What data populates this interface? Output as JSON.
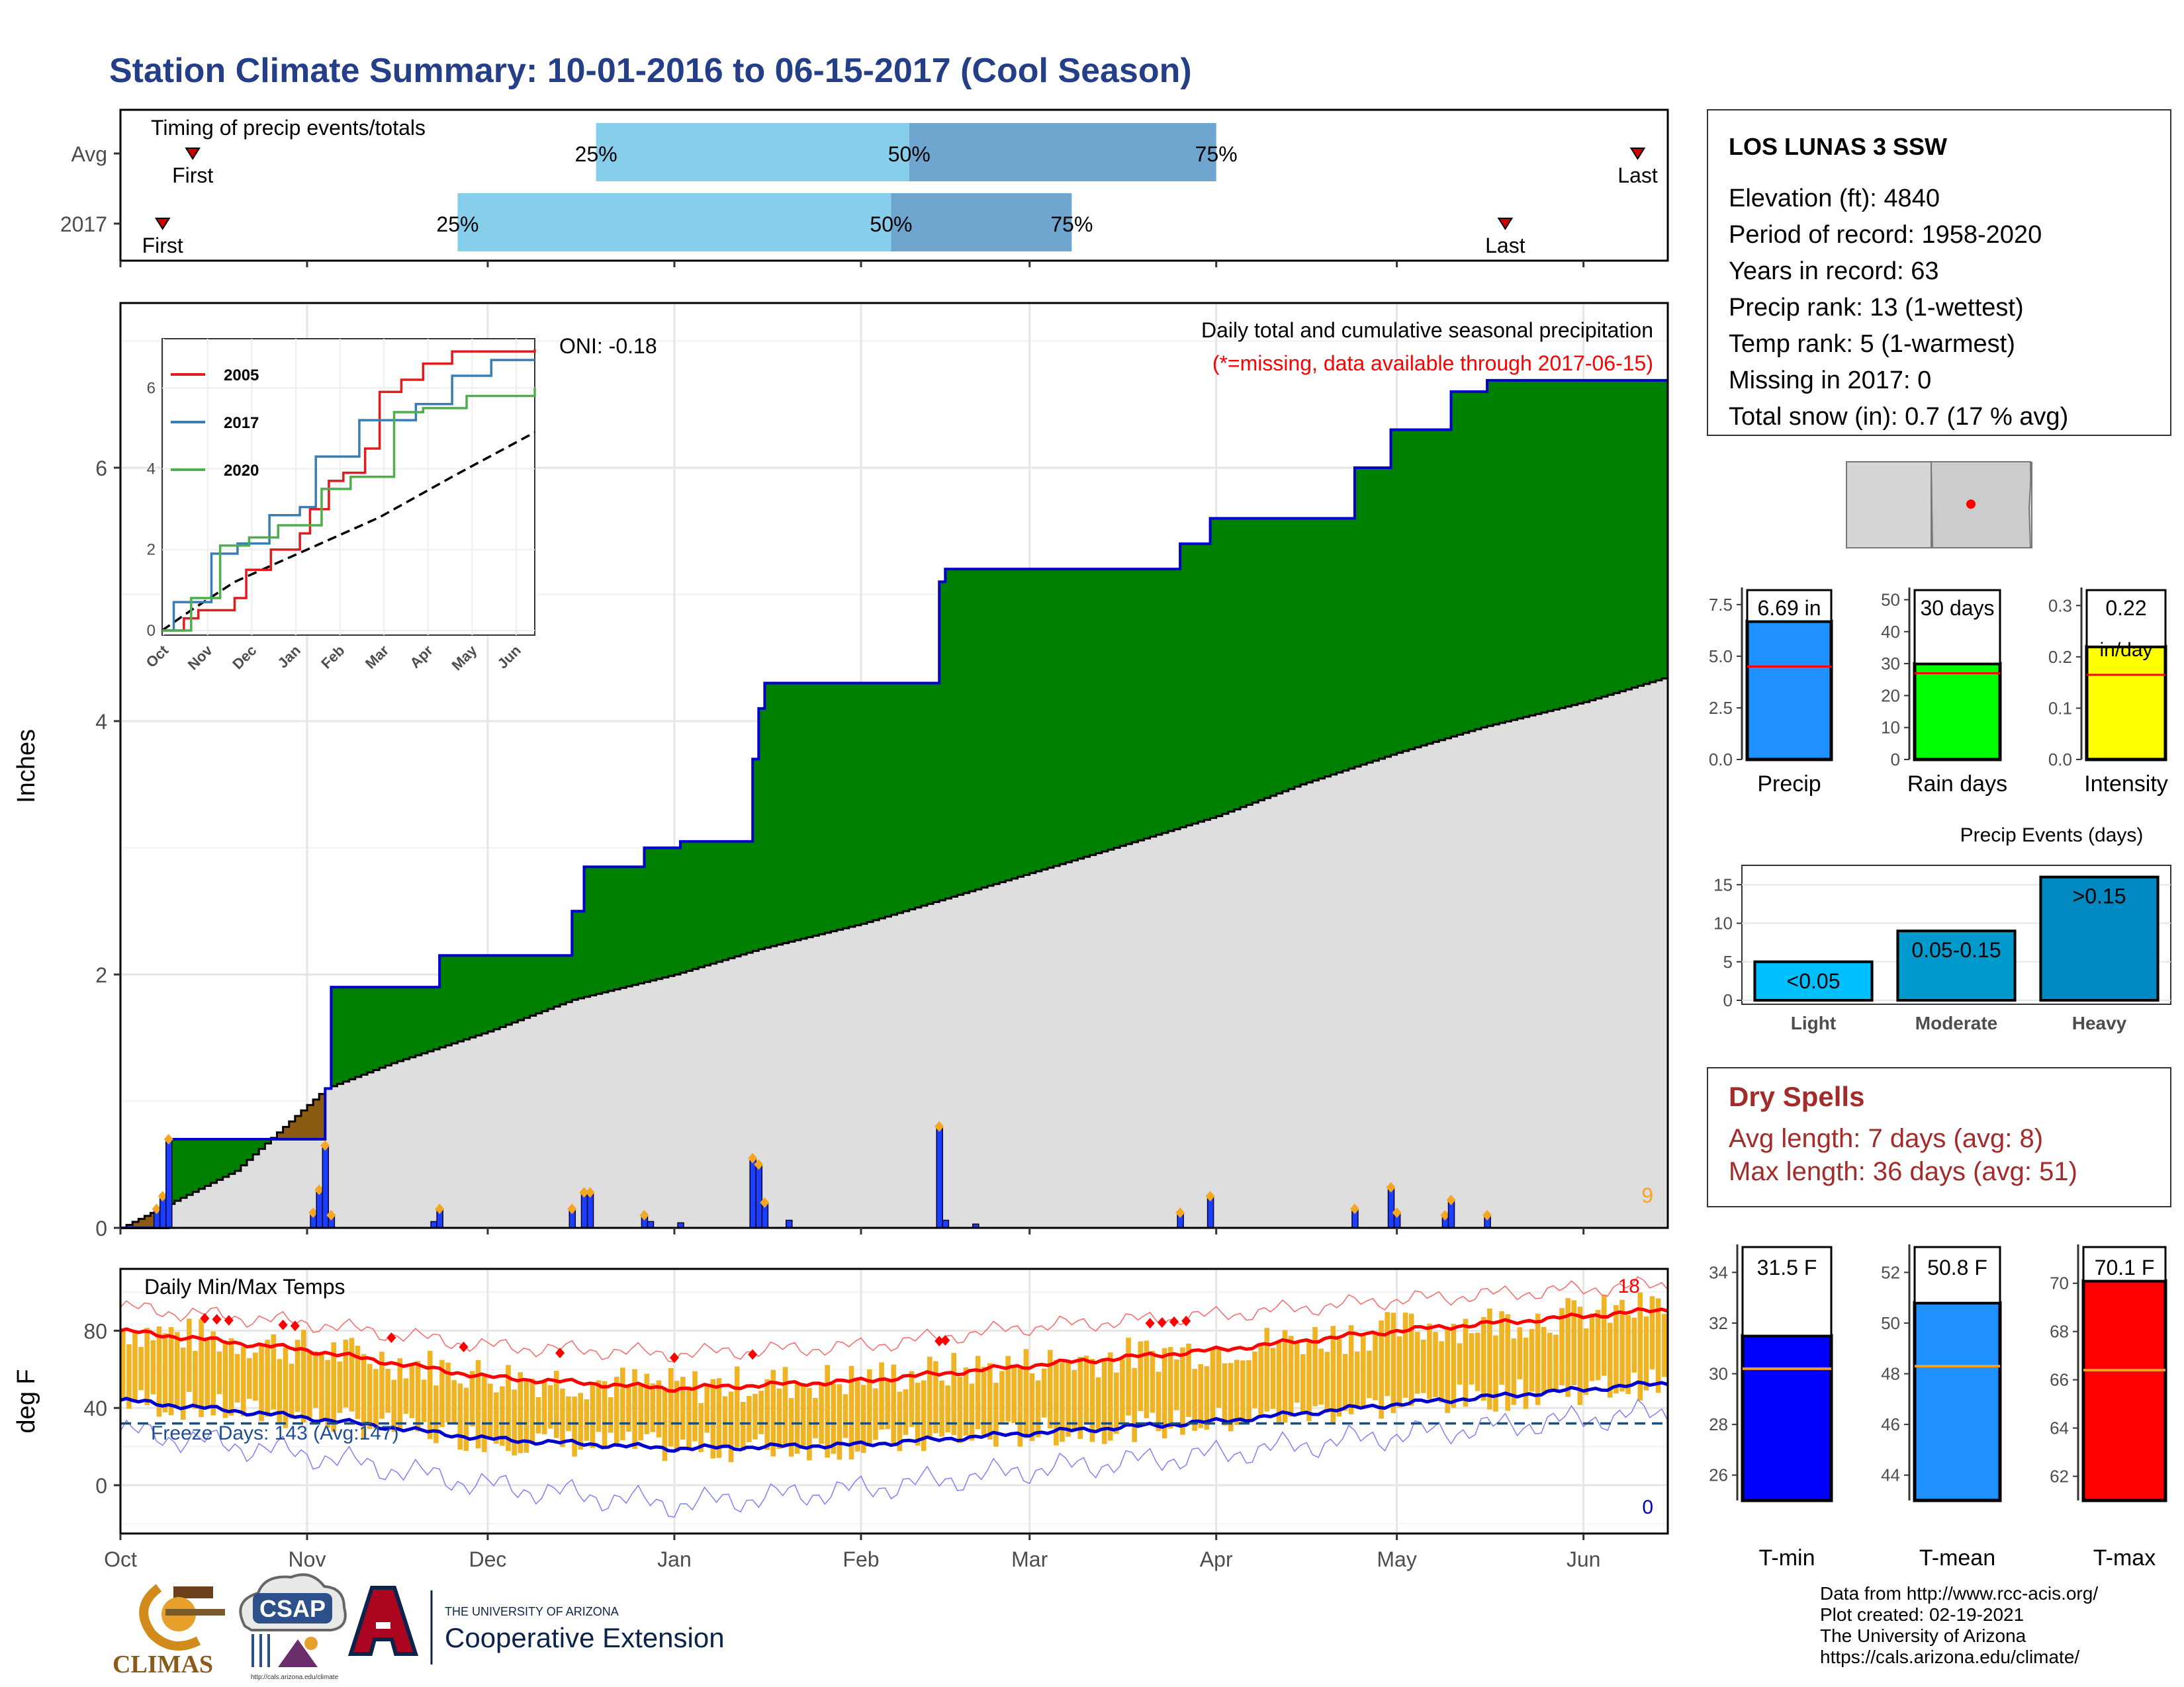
{
  "title": "Station Climate Summary: 10-01-2016 to 06-15-2017 (Cool Season)",
  "timing": {
    "title": "Timing of precip events/totals",
    "rows": [
      {
        "label": "Avg",
        "first_label": "First",
        "last_label": "Last",
        "first": "2016-10-13",
        "last": "2017-06-10",
        "p25": "2016-12-19",
        "p50": "2017-02-09",
        "p75": "2017-04-01",
        "p25_label": "25%",
        "p50_label": "50%",
        "p75_label": "75%"
      },
      {
        "label": "2017",
        "first_label": "First",
        "last_label": "Last",
        "first": "2016-10-08",
        "last": "2017-05-19",
        "p25": "2016-11-26",
        "p50": "2017-02-06",
        "p75": "2017-03-08",
        "p25_label": "25%",
        "p50_label": "50%",
        "p75_label": "75%"
      }
    ]
  },
  "precip_panel": {
    "ylabel": "Inches",
    "yticks": [
      0,
      2,
      4,
      6
    ],
    "ylim": [
      0,
      7.3
    ],
    "heading": "Daily total and cumulative seasonal precipitation",
    "missing_note": "(*=missing, data available through 2017-06-15)",
    "oni": "ONI: -0.18",
    "corner_count": "9",
    "cumulative_2017_steps": [
      [
        "2016-10-01",
        0.0
      ],
      [
        "2016-10-09",
        0.7
      ],
      [
        "2016-11-04",
        1.1
      ],
      [
        "2016-11-05",
        1.9
      ],
      [
        "2016-11-23",
        2.15
      ],
      [
        "2016-12-15",
        2.5
      ],
      [
        "2016-12-17",
        2.85
      ],
      [
        "2016-12-27",
        3.0
      ],
      [
        "2017-01-02",
        3.05
      ],
      [
        "2017-01-14",
        3.7
      ],
      [
        "2017-01-15",
        4.1
      ],
      [
        "2017-01-16",
        4.3
      ],
      [
        "2017-02-14",
        5.1
      ],
      [
        "2017-02-15",
        5.2
      ],
      [
        "2017-03-26",
        5.4
      ],
      [
        "2017-03-31",
        5.6
      ],
      [
        "2017-04-24",
        6.0
      ],
      [
        "2017-04-30",
        6.3
      ],
      [
        "2017-05-10",
        6.6
      ],
      [
        "2017-05-16",
        6.69
      ]
    ],
    "average_cumulative": [
      [
        "2016-10-01",
        0.0
      ],
      [
        "2016-10-20",
        0.45
      ],
      [
        "2016-11-04",
        1.1
      ],
      [
        "2016-11-15",
        1.3
      ],
      [
        "2016-12-01",
        1.55
      ],
      [
        "2016-12-15",
        1.8
      ],
      [
        "2017-01-01",
        2.0
      ],
      [
        "2017-01-15",
        2.2
      ],
      [
        "2017-02-01",
        2.4
      ],
      [
        "2017-02-15",
        2.6
      ],
      [
        "2017-03-01",
        2.8
      ],
      [
        "2017-03-15",
        3.0
      ],
      [
        "2017-04-01",
        3.25
      ],
      [
        "2017-04-15",
        3.5
      ],
      [
        "2017-05-01",
        3.75
      ],
      [
        "2017-05-15",
        3.95
      ],
      [
        "2017-06-01",
        4.15
      ],
      [
        "2017-06-15",
        4.35
      ]
    ],
    "daily_precip": [
      [
        "2016-10-07",
        0.15
      ],
      [
        "2016-10-08",
        0.25
      ],
      [
        "2016-10-09",
        0.7
      ],
      [
        "2016-11-02",
        0.12
      ],
      [
        "2016-11-03",
        0.3
      ],
      [
        "2016-11-04",
        0.65
      ],
      [
        "2016-11-05",
        0.1
      ],
      [
        "2016-11-22",
        0.05
      ],
      [
        "2016-11-23",
        0.15
      ],
      [
        "2016-12-15",
        0.15
      ],
      [
        "2016-12-17",
        0.28
      ],
      [
        "2016-12-18",
        0.28
      ],
      [
        "2016-12-27",
        0.1
      ],
      [
        "2016-12-28",
        0.05
      ],
      [
        "2017-01-02",
        0.04
      ],
      [
        "2017-01-14",
        0.55
      ],
      [
        "2017-01-15",
        0.5
      ],
      [
        "2017-01-16",
        0.2
      ],
      [
        "2017-01-20",
        0.06
      ],
      [
        "2017-02-14",
        0.8
      ],
      [
        "2017-02-15",
        0.06
      ],
      [
        "2017-02-20",
        0.03
      ],
      [
        "2017-03-26",
        0.12
      ],
      [
        "2017-03-31",
        0.25
      ],
      [
        "2017-04-24",
        0.15
      ],
      [
        "2017-04-30",
        0.32
      ],
      [
        "2017-05-01",
        0.12
      ],
      [
        "2017-05-09",
        0.1
      ],
      [
        "2017-05-10",
        0.22
      ],
      [
        "2017-05-16",
        0.1
      ]
    ]
  },
  "inset": {
    "series": [
      {
        "name": "2005",
        "color": "#e41a1c",
        "points": [
          [
            0,
            0
          ],
          [
            15,
            0.3
          ],
          [
            25,
            0.5
          ],
          [
            50,
            0.8
          ],
          [
            58,
            1.5
          ],
          [
            75,
            2.0
          ],
          [
            95,
            2.4
          ],
          [
            102,
            3.0
          ],
          [
            115,
            3.7
          ],
          [
            125,
            3.9
          ],
          [
            140,
            4.5
          ],
          [
            150,
            5.9
          ],
          [
            165,
            6.2
          ],
          [
            180,
            6.6
          ],
          [
            200,
            6.9
          ],
          [
            257,
            6.95
          ]
        ]
      },
      {
        "name": "2017",
        "color": "#377eb8",
        "points": [
          [
            0,
            0
          ],
          [
            8,
            0.7
          ],
          [
            34,
            1.9
          ],
          [
            52,
            2.15
          ],
          [
            74,
            2.85
          ],
          [
            95,
            3.05
          ],
          [
            106,
            4.3
          ],
          [
            136,
            5.2
          ],
          [
            175,
            5.6
          ],
          [
            200,
            6.3
          ],
          [
            227,
            6.69
          ],
          [
            257,
            6.69
          ]
        ]
      },
      {
        "name": "2020",
        "color": "#4daf4a",
        "points": [
          [
            0,
            0
          ],
          [
            20,
            0.8
          ],
          [
            40,
            2.1
          ],
          [
            60,
            2.3
          ],
          [
            80,
            2.6
          ],
          [
            110,
            3.5
          ],
          [
            130,
            3.8
          ],
          [
            160,
            5.4
          ],
          [
            180,
            5.5
          ],
          [
            210,
            5.8
          ],
          [
            257,
            6.0
          ]
        ]
      }
    ],
    "average": [
      [
        0,
        0
      ],
      [
        20,
        0.5
      ],
      [
        50,
        1.2
      ],
      [
        100,
        2.0
      ],
      [
        150,
        2.8
      ],
      [
        200,
        3.8
      ],
      [
        257,
        4.9
      ]
    ],
    "yticks": [
      0,
      2,
      4,
      6
    ],
    "xticks": [
      "Oct",
      "Nov",
      "Dec",
      "Jan",
      "Feb",
      "Mar",
      "Apr",
      "May",
      "Jun"
    ]
  },
  "x_axis_months": [
    "Oct",
    "Nov",
    "Dec",
    "Jan",
    "Feb",
    "Mar",
    "Apr",
    "May",
    "Jun"
  ],
  "temp_panel": {
    "ylabel": "deg F",
    "title": "Daily Min/Max Temps",
    "yticks": [
      0,
      40,
      80
    ],
    "ylim": [
      -25,
      112
    ],
    "freeze_label": "Freeze Days: 143 (Avg:147)",
    "hot_count": "18",
    "cold_count": "0",
    "freeze_line": 32,
    "avg_max": [
      [
        "2016-10-01",
        80
      ],
      [
        "2016-11-01",
        70
      ],
      [
        "2016-12-01",
        56
      ],
      [
        "2017-01-01",
        50
      ],
      [
        "2017-02-01",
        54
      ],
      [
        "2017-03-01",
        62
      ],
      [
        "2017-04-01",
        70
      ],
      [
        "2017-05-01",
        80
      ],
      [
        "2017-06-15",
        91
      ]
    ],
    "avg_min": [
      [
        "2016-10-01",
        44
      ],
      [
        "2016-11-01",
        35
      ],
      [
        "2016-12-01",
        24
      ],
      [
        "2017-01-01",
        19
      ],
      [
        "2017-02-01",
        21
      ],
      [
        "2017-03-01",
        27
      ],
      [
        "2017-04-01",
        33
      ],
      [
        "2017-05-01",
        42
      ],
      [
        "2017-06-15",
        53
      ]
    ],
    "record_max": [
      [
        "2016-10-01",
        92
      ],
      [
        "2016-11-01",
        84
      ],
      [
        "2016-12-01",
        72
      ],
      [
        "2017-01-01",
        68
      ],
      [
        "2017-02-01",
        72
      ],
      [
        "2017-03-01",
        82
      ],
      [
        "2017-04-01",
        88
      ],
      [
        "2017-05-01",
        96
      ],
      [
        "2017-06-15",
        104
      ]
    ],
    "record_min": [
      [
        "2016-10-01",
        28
      ],
      [
        "2016-11-01",
        16
      ],
      [
        "2016-12-01",
        0
      ],
      [
        "2017-01-01",
        -10
      ],
      [
        "2017-02-01",
        -2
      ],
      [
        "2017-03-01",
        8
      ],
      [
        "2017-04-01",
        16
      ],
      [
        "2017-05-01",
        26
      ],
      [
        "2017-06-15",
        38
      ]
    ]
  },
  "station": {
    "name": "LOS LUNAS 3 SSW",
    "lines": [
      "Elevation (ft): 4840",
      "Period of record: 1958-2020",
      "Years in record: 63",
      "Precip rank: 13 (1-wettest)",
      "Temp rank: 5 (1-warmest)",
      "Missing in 2017: 0",
      "Total snow (in): 0.7 (17 % avg)"
    ]
  },
  "mini_bars": [
    {
      "label": "Precip",
      "value_label": "6.69 in",
      "value": 6.69,
      "avg": 4.5,
      "ymax": 8.2,
      "yticks": [
        "0.0",
        "2.5",
        "5.0",
        "7.5"
      ],
      "ytick_vals": [
        0,
        2.5,
        5,
        7.5
      ],
      "color": "#1e90ff"
    },
    {
      "label": "Rain days",
      "value_label": "30 days",
      "value": 30,
      "avg": 27,
      "ymax": 53,
      "yticks": [
        "0",
        "10",
        "20",
        "30",
        "40",
        "50"
      ],
      "ytick_vals": [
        0,
        10,
        20,
        30,
        40,
        50
      ],
      "color": "#00ff00"
    },
    {
      "label": "Intensity",
      "value_label": "0.22",
      "value_label2": "in/day",
      "value": 0.22,
      "avg": 0.165,
      "ymax": 0.33,
      "yticks": [
        "0.0",
        "0.1",
        "0.2",
        "0.3"
      ],
      "ytick_vals": [
        0,
        0.1,
        0.2,
        0.3
      ],
      "color": "#ffff00"
    }
  ],
  "events": {
    "title": "Precip Events (days)",
    "categories": [
      "Light",
      "Moderate",
      "Heavy"
    ],
    "bar_labels": [
      "<0.05",
      "0.05-0.15",
      ">0.15"
    ],
    "values": [
      5,
      9,
      16
    ],
    "yticks": [
      0,
      5,
      10,
      15
    ],
    "colors": [
      "#00bfff",
      "#009acd",
      "#0088c0"
    ]
  },
  "dry_spells": {
    "title": "Dry Spells",
    "avg_line": "Avg length: 7 days (avg: 8)",
    "max_line": "Max length: 36 days (avg: 51)"
  },
  "temp_bars": [
    {
      "label": "T-min",
      "value_label": "31.5 F",
      "value": 31.5,
      "avg": 30.2,
      "ylim": [
        25,
        35
      ],
      "yticks": [
        26,
        28,
        30,
        32,
        34
      ],
      "color": "#0000ff"
    },
    {
      "label": "T-mean",
      "value_label": "50.8 F",
      "value": 50.8,
      "avg": 48.3,
      "ylim": [
        43,
        53
      ],
      "yticks": [
        44,
        46,
        48,
        50,
        52
      ],
      "color": "#1e90ff"
    },
    {
      "label": "T-max",
      "value_label": "70.1 F",
      "value": 70.1,
      "avg": 66.4,
      "ylim": [
        61,
        71.5
      ],
      "yticks": [
        62,
        64,
        66,
        68,
        70
      ],
      "color": "#ff0000"
    }
  ],
  "logos": {
    "climas": "CLIMAS",
    "csap": "CSAP",
    "csap_url": "http://cals.arizona.edu/climate",
    "ua_small": "THE UNIVERSITY OF ARIZONA",
    "ua_big": "Cooperative Extension"
  },
  "credits": [
    "Data from http://www.rcc-acis.org/",
    "Plot created: 02-19-2021",
    "The University of Arizona",
    "https://cals.arizona.edu/climate/"
  ]
}
